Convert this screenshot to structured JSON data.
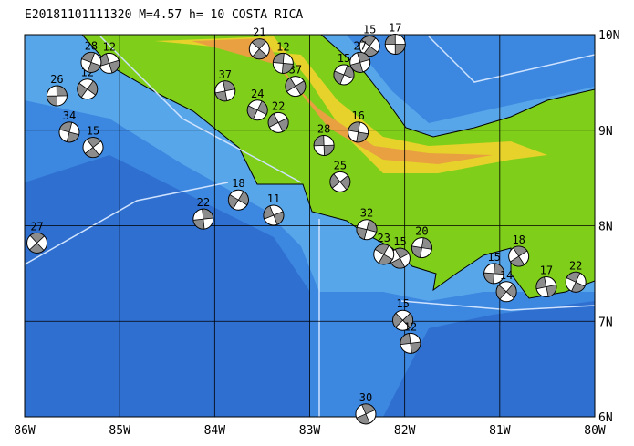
{
  "map": {
    "title": "E20181101111320 M=4.57 h= 10 COSTA RICA",
    "xlim": [
      -86,
      -80
    ],
    "ylim": [
      6,
      10
    ],
    "xticks": [
      {
        "value": -86,
        "label": "86W"
      },
      {
        "value": -85,
        "label": "85W"
      },
      {
        "value": -84,
        "label": "84W"
      },
      {
        "value": -83,
        "label": "83W"
      },
      {
        "value": -82,
        "label": "82W"
      },
      {
        "value": -81,
        "label": "81W"
      },
      {
        "value": -80,
        "label": "80W"
      }
    ],
    "yticks": [
      {
        "value": 6,
        "label": "6N"
      },
      {
        "value": 7,
        "label": "7N"
      },
      {
        "value": 8,
        "label": "8N"
      },
      {
        "value": 9,
        "label": "9N"
      },
      {
        "value": 10,
        "label": "10N"
      }
    ],
    "events": [
      {
        "lon": -82.1,
        "lat": 9.9,
        "label": "17"
      },
      {
        "lon": -82.37,
        "lat": 9.88,
        "label": "15"
      },
      {
        "lon": -82.47,
        "lat": 9.71,
        "label": "27"
      },
      {
        "lon": -82.64,
        "lat": 9.58,
        "label": "15"
      },
      {
        "lon": -83.15,
        "lat": 9.46,
        "label": "37"
      },
      {
        "lon": -83.28,
        "lat": 9.7,
        "label": "12"
      },
      {
        "lon": -83.53,
        "lat": 9.85,
        "label": "21"
      },
      {
        "lon": -83.89,
        "lat": 9.41,
        "label": "37"
      },
      {
        "lon": -83.55,
        "lat": 9.21,
        "label": "24"
      },
      {
        "lon": -83.33,
        "lat": 9.08,
        "label": "22"
      },
      {
        "lon": -82.49,
        "lat": 8.98,
        "label": "16"
      },
      {
        "lon": -85.87,
        "lat": 7.82,
        "label": "27"
      },
      {
        "lon": -84.12,
        "lat": 8.07,
        "label": "22"
      },
      {
        "lon": -83.75,
        "lat": 8.27,
        "label": "18"
      },
      {
        "lon": -83.38,
        "lat": 8.11,
        "label": "11"
      },
      {
        "lon": -85.53,
        "lat": 8.98,
        "label": "34"
      },
      {
        "lon": -85.28,
        "lat": 8.82,
        "label": "15"
      },
      {
        "lon": -85.66,
        "lat": 9.36,
        "label": "26"
      },
      {
        "lon": -85.34,
        "lat": 9.43,
        "label": "12"
      },
      {
        "lon": -85.11,
        "lat": 9.7,
        "label": "12"
      },
      {
        "lon": -85.3,
        "lat": 9.71,
        "label": "28"
      },
      {
        "lon": -80.8,
        "lat": 7.68,
        "label": "18"
      },
      {
        "lon": -81.06,
        "lat": 7.5,
        "label": "15"
      },
      {
        "lon": -80.93,
        "lat": 7.31,
        "label": "14"
      },
      {
        "lon": -80.51,
        "lat": 7.36,
        "label": "17"
      },
      {
        "lon": -80.2,
        "lat": 7.41,
        "label": "22"
      },
      {
        "lon": -82.05,
        "lat": 7.66,
        "label": "15"
      },
      {
        "lon": -81.82,
        "lat": 7.77,
        "label": "20"
      },
      {
        "lon": -82.02,
        "lat": 7.01,
        "label": "15"
      },
      {
        "lon": -81.94,
        "lat": 6.77,
        "label": "12"
      },
      {
        "lon": -82.22,
        "lat": 7.7,
        "label": "23"
      },
      {
        "lon": -82.41,
        "lat": 6.03,
        "label": "30"
      },
      {
        "lon": -82.4,
        "lat": 7.96,
        "label": "32"
      },
      {
        "lon": -82.68,
        "lat": 8.46,
        "label": "25"
      },
      {
        "lon": -82.85,
        "lat": 8.84,
        "label": "28"
      }
    ]
  }
}
